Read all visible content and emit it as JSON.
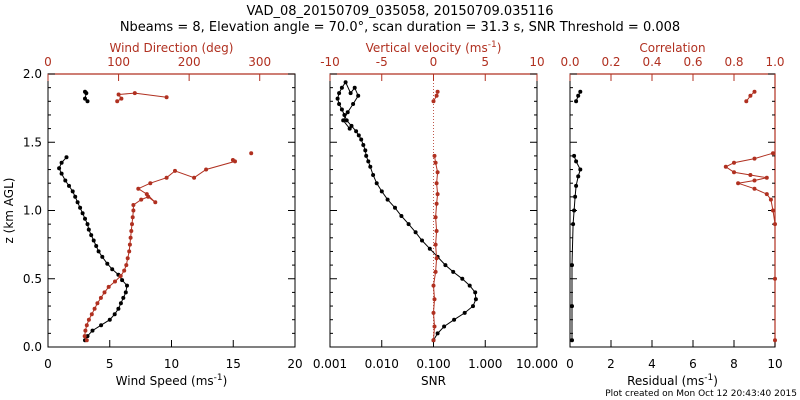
{
  "header": {
    "title_line1": "VAD_08_20150709_035058, 20150709.035116",
    "title_line2": "Nbeams = 8, Elevation angle = 70.0°, scan duration = 31.3 s, SNR Threshold = 0.008"
  },
  "footer": {
    "credit": "Plot created on Mon Oct 12 20:43:40 2015"
  },
  "colors": {
    "black": "#000000",
    "red": "#b03020"
  },
  "chart_data": [
    {
      "type": "line",
      "panel": "left",
      "ylabel": "z (km AGL)",
      "ylim": [
        0,
        2.0
      ],
      "y_ticks": [
        "0.0",
        "0.5",
        "1.0",
        "1.5",
        "2.0"
      ],
      "bottom_axis": {
        "label": "Wind Speed (ms",
        "label_sup": "-1",
        "label_tail": ")",
        "range": [
          0,
          20
        ],
        "ticks": [
          "0",
          "5",
          "10",
          "15",
          "20"
        ]
      },
      "top_axis": {
        "label": "Wind Direction (deg)",
        "range": [
          0,
          350
        ],
        "ticks": [
          "0",
          "100",
          "200",
          "300"
        ]
      },
      "series": [
        {
          "name": "Wind Speed",
          "color": "black",
          "axis": "bottom",
          "segments": [
            [
              [
                3.0,
                0.05
              ],
              [
                3.2,
                0.08
              ],
              [
                3.6,
                0.12
              ],
              [
                4.3,
                0.16
              ],
              [
                5.0,
                0.2
              ],
              [
                5.4,
                0.24
              ],
              [
                5.7,
                0.28
              ],
              [
                5.9,
                0.32
              ],
              [
                6.1,
                0.36
              ],
              [
                6.3,
                0.4
              ],
              [
                6.4,
                0.45
              ],
              [
                6.0,
                0.49
              ],
              [
                5.7,
                0.53
              ],
              [
                5.2,
                0.57
              ],
              [
                4.8,
                0.61
              ],
              [
                4.4,
                0.66
              ],
              [
                4.1,
                0.7
              ],
              [
                3.9,
                0.74
              ],
              [
                3.7,
                0.78
              ],
              [
                3.5,
                0.82
              ],
              [
                3.3,
                0.86
              ],
              [
                3.2,
                0.9
              ],
              [
                3.0,
                0.94
              ],
              [
                2.8,
                0.98
              ],
              [
                2.6,
                1.02
              ],
              [
                2.4,
                1.06
              ],
              [
                2.2,
                1.1
              ],
              [
                2.0,
                1.14
              ],
              [
                1.7,
                1.18
              ],
              [
                1.4,
                1.22
              ],
              [
                1.1,
                1.27
              ],
              [
                0.9,
                1.31
              ],
              [
                1.1,
                1.35
              ],
              [
                1.5,
                1.39
              ]
            ],
            [
              [
                3.2,
                1.8
              ],
              [
                3.0,
                1.82
              ],
              [
                3.1,
                1.86
              ],
              [
                3.0,
                1.87
              ]
            ]
          ]
        },
        {
          "name": "Wind Direction",
          "color": "red",
          "axis": "top",
          "segments": [
            [
              [
                55,
                0.05
              ],
              [
                52,
                0.08
              ],
              [
                53,
                0.12
              ],
              [
                55,
                0.16
              ],
              [
                58,
                0.2
              ],
              [
                62,
                0.24
              ],
              [
                66,
                0.28
              ],
              [
                70,
                0.32
              ],
              [
                75,
                0.36
              ],
              [
                80,
                0.4
              ],
              [
                86,
                0.44
              ],
              [
                95,
                0.48
              ],
              [
                103,
                0.52
              ],
              [
                108,
                0.56
              ],
              [
                111,
                0.6
              ],
              [
                113,
                0.65
              ],
              [
                115,
                0.7
              ],
              [
                116,
                0.75
              ],
              [
                117,
                0.8
              ],
              [
                118,
                0.85
              ],
              [
                119,
                0.9
              ],
              [
                120,
                0.95
              ],
              [
                121,
                1.0
              ],
              [
                121,
                1.04
              ],
              [
                132,
                1.08
              ],
              [
                142,
                1.1
              ],
              [
                152,
                1.06
              ],
              [
                140,
                1.12
              ],
              [
                128,
                1.16
              ],
              [
                145,
                1.2
              ],
              [
                168,
                1.24
              ],
              [
                180,
                1.29
              ],
              [
                207,
                1.24
              ],
              [
                224,
                1.3
              ],
              [
                265,
                1.36
              ],
              [
                262,
                1.37
              ]
            ],
            [
              [
                288,
                1.42
              ]
            ],
            [
              [
                98,
                1.8
              ],
              [
                104,
                1.82
              ],
              [
                100,
                1.85
              ],
              [
                123,
                1.86
              ],
              [
                168,
                1.83
              ]
            ]
          ]
        }
      ]
    },
    {
      "type": "line",
      "panel": "middle",
      "ylim": [
        0,
        2.0
      ],
      "bottom_axis": {
        "label": "SNR",
        "scale": "log",
        "range": [
          0.001,
          10
        ],
        "ticks": [
          "0.001",
          "0.010",
          "0.100",
          "1.000",
          "10.000"
        ]
      },
      "top_axis": {
        "label": "Vertical velocity (ms",
        "label_sup": "-1",
        "label_tail": ")",
        "range": [
          -10,
          10
        ],
        "ticks": [
          "-10",
          "-5",
          "0",
          "5",
          "10"
        ]
      },
      "series": [
        {
          "name": "SNR",
          "color": "black",
          "axis": "bottom",
          "segments": [
            [
              [
                0.1,
                0.05
              ],
              [
                0.12,
                0.1
              ],
              [
                0.16,
                0.15
              ],
              [
                0.25,
                0.2
              ],
              [
                0.4,
                0.25
              ],
              [
                0.58,
                0.3
              ],
              [
                0.66,
                0.35
              ],
              [
                0.64,
                0.4
              ],
              [
                0.5,
                0.45
              ],
              [
                0.36,
                0.5
              ],
              [
                0.24,
                0.55
              ],
              [
                0.17,
                0.6
              ],
              [
                0.12,
                0.66
              ],
              [
                0.085,
                0.72
              ],
              [
                0.06,
                0.78
              ],
              [
                0.045,
                0.84
              ],
              [
                0.033,
                0.9
              ],
              [
                0.024,
                0.96
              ],
              [
                0.018,
                1.02
              ],
              [
                0.013,
                1.08
              ],
              [
                0.01,
                1.14
              ],
              [
                0.008,
                1.2
              ],
              [
                0.0068,
                1.26
              ],
              [
                0.006,
                1.32
              ],
              [
                0.0055,
                1.36
              ],
              [
                0.005,
                1.4
              ],
              [
                0.0048,
                1.44
              ],
              [
                0.0044,
                1.48
              ],
              [
                0.004,
                1.52
              ],
              [
                0.0036,
                1.55
              ],
              [
                0.0032,
                1.58
              ],
              [
                0.0026,
                1.62
              ],
              [
                0.0021,
                1.66
              ],
              [
                0.0019,
                1.7
              ],
              [
                0.0017,
                1.74
              ],
              [
                0.0015,
                1.78
              ],
              [
                0.0014,
                1.82
              ],
              [
                0.0015,
                1.86
              ],
              [
                0.0017,
                1.9
              ],
              [
                0.002,
                1.94
              ],
              [
                0.0025,
                1.86
              ],
              [
                0.003,
                1.9
              ],
              [
                0.0035,
                1.84
              ],
              [
                0.0028,
                1.78
              ],
              [
                0.0022,
                1.72
              ],
              [
                0.0018,
                1.66
              ],
              [
                0.0024,
                1.6
              ]
            ]
          ]
        },
        {
          "name": "Vertical velocity",
          "color": "red",
          "axis": "top",
          "segments": [
            [
              [
                0.0,
                0.05
              ],
              [
                0.1,
                0.15
              ],
              [
                0.0,
                0.25
              ],
              [
                0.1,
                0.35
              ],
              [
                0.0,
                0.45
              ],
              [
                0.2,
                0.55
              ],
              [
                0.3,
                0.65
              ],
              [
                0.2,
                0.75
              ],
              [
                0.3,
                0.85
              ],
              [
                0.2,
                0.95
              ],
              [
                0.3,
                1.05
              ],
              [
                0.4,
                1.12
              ],
              [
                0.3,
                1.2
              ],
              [
                0.4,
                1.28
              ],
              [
                0.2,
                1.35
              ],
              [
                0.1,
                1.4
              ]
            ],
            [
              [
                0.0,
                1.8
              ],
              [
                0.3,
                1.84
              ],
              [
                0.4,
                1.87
              ]
            ]
          ]
        }
      ]
    },
    {
      "type": "line",
      "panel": "right",
      "ylim": [
        0,
        2.0
      ],
      "bottom_axis": {
        "label": "Residual (ms",
        "label_sup": "-1",
        "label_tail": ")",
        "range": [
          0,
          10
        ],
        "ticks": [
          "0",
          "2",
          "4",
          "6",
          "8",
          "10"
        ]
      },
      "top_axis": {
        "label": "Correlation",
        "range": [
          0,
          1.0
        ],
        "ticks": [
          "0.0",
          "0.2",
          "0.4",
          "0.6",
          "0.8",
          "1.0"
        ]
      },
      "series": [
        {
          "name": "Residual",
          "color": "black",
          "axis": "bottom",
          "segments": [
            [
              [
                0.1,
                0.05
              ],
              [
                0.1,
                0.3
              ],
              [
                0.1,
                0.6
              ],
              [
                0.15,
                0.9
              ],
              [
                0.2,
                1.0
              ],
              [
                0.25,
                1.1
              ],
              [
                0.3,
                1.18
              ],
              [
                0.4,
                1.25
              ],
              [
                0.5,
                1.3
              ],
              [
                0.3,
                1.36
              ],
              [
                0.2,
                1.4
              ]
            ],
            [
              [
                0.3,
                1.8
              ],
              [
                0.4,
                1.84
              ],
              [
                0.5,
                1.87
              ]
            ]
          ]
        },
        {
          "name": "Correlation",
          "color": "red",
          "axis": "top",
          "segments": [
            [
              [
                1.0,
                0.05
              ],
              [
                1.0,
                0.5
              ],
              [
                1.0,
                0.9
              ],
              [
                0.99,
                1.0
              ],
              [
                0.98,
                1.08
              ],
              [
                0.96,
                1.12
              ],
              [
                0.9,
                1.16
              ],
              [
                0.82,
                1.2
              ],
              [
                0.9,
                1.22
              ],
              [
                0.96,
                1.24
              ],
              [
                0.88,
                1.26
              ],
              [
                0.8,
                1.28
              ],
              [
                0.76,
                1.32
              ],
              [
                0.8,
                1.35
              ],
              [
                0.9,
                1.38
              ],
              [
                0.99,
                1.42
              ]
            ],
            [
              [
                0.86,
                1.8
              ],
              [
                0.88,
                1.84
              ],
              [
                0.9,
                1.87
              ]
            ]
          ]
        }
      ]
    }
  ]
}
